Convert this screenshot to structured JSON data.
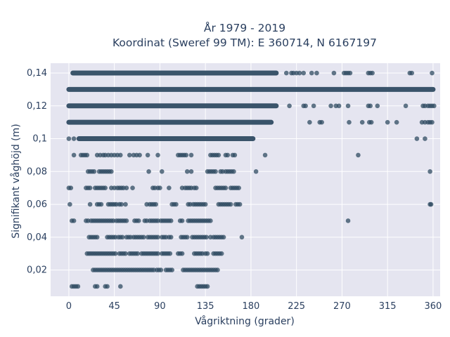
{
  "chart_data": {
    "type": "scatter",
    "title_line1": "År 1979 - 2019",
    "title_line2": "Koordinat (Sweref 99 TM): E 360714, N 6167197",
    "xlabel": "Vågriktning (grader)",
    "ylabel": "Signifikant våghöjd (m)",
    "xlim": [
      -18,
      367
    ],
    "ylim": [
      0.004,
      0.146
    ],
    "x_ticks": [
      0,
      45,
      90,
      135,
      180,
      225,
      270,
      315,
      360
    ],
    "x_tick_labels": [
      "0",
      "45",
      "90",
      "135",
      "180",
      "225",
      "270",
      "315",
      "360"
    ],
    "y_ticks": [
      0.02,
      0.04,
      0.06,
      0.08,
      0.1,
      0.12,
      0.14
    ],
    "y_tick_labels": [
      "0,02",
      "0,04",
      "0,06",
      "0,08",
      "0,1",
      "0,12",
      "0,14"
    ],
    "grid": true,
    "legend": "none",
    "colors": {
      "marker": "#2f4b62",
      "plot_bg": "#e5e5f0",
      "grid": "#ffffff"
    },
    "dense_rows": [
      {
        "y": 0.14,
        "x_start": 4,
        "x_end": 205
      },
      {
        "y": 0.13,
        "x_start": 0,
        "x_end": 360
      },
      {
        "y": 0.12,
        "x_start": 0,
        "x_end": 205
      },
      {
        "y": 0.11,
        "x_start": 0,
        "x_end": 200
      },
      {
        "y": 0.1,
        "x_start": 10,
        "x_end": 182
      }
    ],
    "points": [
      [
        215,
        0.14
      ],
      [
        220,
        0.14
      ],
      [
        222,
        0.14
      ],
      [
        225,
        0.14
      ],
      [
        228,
        0.14
      ],
      [
        232,
        0.14
      ],
      [
        240,
        0.14
      ],
      [
        245,
        0.14
      ],
      [
        262,
        0.14
      ],
      [
        272,
        0.14
      ],
      [
        274,
        0.14
      ],
      [
        276,
        0.14
      ],
      [
        278,
        0.14
      ],
      [
        296,
        0.14
      ],
      [
        298,
        0.14
      ],
      [
        300,
        0.14
      ],
      [
        337,
        0.14
      ],
      [
        339,
        0.14
      ],
      [
        359,
        0.14
      ],
      [
        218,
        0.12
      ],
      [
        232,
        0.12
      ],
      [
        234,
        0.12
      ],
      [
        242,
        0.12
      ],
      [
        259,
        0.12
      ],
      [
        264,
        0.12
      ],
      [
        267,
        0.12
      ],
      [
        276,
        0.12
      ],
      [
        296,
        0.12
      ],
      [
        298,
        0.12
      ],
      [
        305,
        0.12
      ],
      [
        333,
        0.12
      ],
      [
        350,
        0.12
      ],
      [
        352,
        0.12
      ],
      [
        355,
        0.12
      ],
      [
        357,
        0.12
      ],
      [
        359,
        0.12
      ],
      [
        361,
        0.12
      ],
      [
        238,
        0.11
      ],
      [
        248,
        0.11
      ],
      [
        250,
        0.11
      ],
      [
        277,
        0.11
      ],
      [
        290,
        0.11
      ],
      [
        297,
        0.11
      ],
      [
        299,
        0.11
      ],
      [
        315,
        0.11
      ],
      [
        324,
        0.11
      ],
      [
        349,
        0.11
      ],
      [
        352,
        0.11
      ],
      [
        355,
        0.11
      ],
      [
        357,
        0.11
      ],
      [
        359,
        0.11
      ],
      [
        0,
        0.1
      ],
      [
        5,
        0.1
      ],
      [
        344,
        0.1
      ],
      [
        352,
        0.1
      ],
      [
        5,
        0.09
      ],
      [
        12,
        0.09
      ],
      [
        14,
        0.09
      ],
      [
        16,
        0.09
      ],
      [
        18,
        0.09
      ],
      [
        28,
        0.09
      ],
      [
        31,
        0.09
      ],
      [
        34,
        0.09
      ],
      [
        36,
        0.09
      ],
      [
        39,
        0.09
      ],
      [
        42,
        0.09
      ],
      [
        45,
        0.09
      ],
      [
        48,
        0.09
      ],
      [
        51,
        0.09
      ],
      [
        60,
        0.09
      ],
      [
        64,
        0.09
      ],
      [
        67,
        0.09
      ],
      [
        70,
        0.09
      ],
      [
        78,
        0.09
      ],
      [
        88,
        0.09
      ],
      [
        108,
        0.09
      ],
      [
        110,
        0.09
      ],
      [
        112,
        0.09
      ],
      [
        114,
        0.09
      ],
      [
        116,
        0.09
      ],
      [
        121,
        0.09
      ],
      [
        140,
        0.09
      ],
      [
        142,
        0.09
      ],
      [
        144,
        0.09
      ],
      [
        146,
        0.09
      ],
      [
        148,
        0.09
      ],
      [
        155,
        0.09
      ],
      [
        157,
        0.09
      ],
      [
        162,
        0.09
      ],
      [
        164,
        0.09
      ],
      [
        194,
        0.09
      ],
      [
        286,
        0.09
      ],
      [
        19,
        0.08
      ],
      [
        21,
        0.08
      ],
      [
        23,
        0.08
      ],
      [
        25,
        0.08
      ],
      [
        30,
        0.08
      ],
      [
        32,
        0.08
      ],
      [
        34,
        0.08
      ],
      [
        36,
        0.08
      ],
      [
        38,
        0.08
      ],
      [
        40,
        0.08
      ],
      [
        42,
        0.08
      ],
      [
        79,
        0.08
      ],
      [
        92,
        0.08
      ],
      [
        117,
        0.08
      ],
      [
        121,
        0.08
      ],
      [
        137,
        0.08
      ],
      [
        139,
        0.08
      ],
      [
        141,
        0.08
      ],
      [
        143,
        0.08
      ],
      [
        145,
        0.08
      ],
      [
        150,
        0.08
      ],
      [
        152,
        0.08
      ],
      [
        155,
        0.08
      ],
      [
        157,
        0.08
      ],
      [
        159,
        0.08
      ],
      [
        161,
        0.08
      ],
      [
        163,
        0.08
      ],
      [
        185,
        0.08
      ],
      [
        357,
        0.08
      ],
      [
        0,
        0.07
      ],
      [
        2,
        0.07
      ],
      [
        17,
        0.07
      ],
      [
        19,
        0.07
      ],
      [
        21,
        0.07
      ],
      [
        26,
        0.07
      ],
      [
        28,
        0.07
      ],
      [
        30,
        0.07
      ],
      [
        32,
        0.07
      ],
      [
        34,
        0.07
      ],
      [
        36,
        0.07
      ],
      [
        42,
        0.07
      ],
      [
        45,
        0.07
      ],
      [
        48,
        0.07
      ],
      [
        50,
        0.07
      ],
      [
        52,
        0.07
      ],
      [
        54,
        0.07
      ],
      [
        57,
        0.07
      ],
      [
        63,
        0.07
      ],
      [
        83,
        0.07
      ],
      [
        85,
        0.07
      ],
      [
        88,
        0.07
      ],
      [
        90,
        0.07
      ],
      [
        99,
        0.07
      ],
      [
        112,
        0.07
      ],
      [
        115,
        0.07
      ],
      [
        117,
        0.07
      ],
      [
        119,
        0.07
      ],
      [
        121,
        0.07
      ],
      [
        124,
        0.07
      ],
      [
        126,
        0.07
      ],
      [
        145,
        0.07
      ],
      [
        147,
        0.07
      ],
      [
        149,
        0.07
      ],
      [
        151,
        0.07
      ],
      [
        153,
        0.07
      ],
      [
        155,
        0.07
      ],
      [
        160,
        0.07
      ],
      [
        162,
        0.07
      ],
      [
        164,
        0.07
      ],
      [
        166,
        0.07
      ],
      [
        168,
        0.07
      ],
      [
        1,
        0.06
      ],
      [
        21,
        0.06
      ],
      [
        28,
        0.06
      ],
      [
        30,
        0.06
      ],
      [
        32,
        0.06
      ],
      [
        39,
        0.06
      ],
      [
        41,
        0.06
      ],
      [
        43,
        0.06
      ],
      [
        45,
        0.06
      ],
      [
        47,
        0.06
      ],
      [
        50,
        0.06
      ],
      [
        52,
        0.06
      ],
      [
        56,
        0.06
      ],
      [
        77,
        0.06
      ],
      [
        80,
        0.06
      ],
      [
        82,
        0.06
      ],
      [
        84,
        0.06
      ],
      [
        86,
        0.06
      ],
      [
        102,
        0.06
      ],
      [
        104,
        0.06
      ],
      [
        106,
        0.06
      ],
      [
        118,
        0.06
      ],
      [
        120,
        0.06
      ],
      [
        123,
        0.06
      ],
      [
        125,
        0.06
      ],
      [
        127,
        0.06
      ],
      [
        129,
        0.06
      ],
      [
        131,
        0.06
      ],
      [
        133,
        0.06
      ],
      [
        135,
        0.06
      ],
      [
        148,
        0.06
      ],
      [
        150,
        0.06
      ],
      [
        152,
        0.06
      ],
      [
        154,
        0.06
      ],
      [
        156,
        0.06
      ],
      [
        158,
        0.06
      ],
      [
        160,
        0.06
      ],
      [
        165,
        0.06
      ],
      [
        167,
        0.06
      ],
      [
        169,
        0.06
      ],
      [
        357,
        0.06
      ],
      [
        358,
        0.06
      ],
      [
        3,
        0.05
      ],
      [
        5,
        0.05
      ],
      [
        17,
        0.05
      ],
      [
        19,
        0.05
      ],
      [
        22,
        0.05
      ],
      [
        24,
        0.05
      ],
      [
        26,
        0.05
      ],
      [
        28,
        0.05
      ],
      [
        30,
        0.05
      ],
      [
        32,
        0.05
      ],
      [
        34,
        0.05
      ],
      [
        36,
        0.05
      ],
      [
        38,
        0.05
      ],
      [
        40,
        0.05
      ],
      [
        42,
        0.05
      ],
      [
        44,
        0.05
      ],
      [
        47,
        0.05
      ],
      [
        49,
        0.05
      ],
      [
        51,
        0.05
      ],
      [
        53,
        0.05
      ],
      [
        55,
        0.05
      ],
      [
        57,
        0.05
      ],
      [
        65,
        0.05
      ],
      [
        67,
        0.05
      ],
      [
        69,
        0.05
      ],
      [
        75,
        0.05
      ],
      [
        77,
        0.05
      ],
      [
        80,
        0.05
      ],
      [
        82,
        0.05
      ],
      [
        84,
        0.05
      ],
      [
        86,
        0.05
      ],
      [
        88,
        0.05
      ],
      [
        91,
        0.05
      ],
      [
        93,
        0.05
      ],
      [
        95,
        0.05
      ],
      [
        97,
        0.05
      ],
      [
        99,
        0.05
      ],
      [
        101,
        0.05
      ],
      [
        110,
        0.05
      ],
      [
        112,
        0.05
      ],
      [
        118,
        0.05
      ],
      [
        120,
        0.05
      ],
      [
        122,
        0.05
      ],
      [
        124,
        0.05
      ],
      [
        126,
        0.05
      ],
      [
        128,
        0.05
      ],
      [
        130,
        0.05
      ],
      [
        132,
        0.05
      ],
      [
        134,
        0.05
      ],
      [
        136,
        0.05
      ],
      [
        138,
        0.05
      ],
      [
        140,
        0.05
      ],
      [
        276,
        0.05
      ],
      [
        20,
        0.04
      ],
      [
        22,
        0.04
      ],
      [
        24,
        0.04
      ],
      [
        26,
        0.04
      ],
      [
        28,
        0.04
      ],
      [
        38,
        0.04
      ],
      [
        40,
        0.04
      ],
      [
        42,
        0.04
      ],
      [
        44,
        0.04
      ],
      [
        46,
        0.04
      ],
      [
        49,
        0.04
      ],
      [
        51,
        0.04
      ],
      [
        53,
        0.04
      ],
      [
        57,
        0.04
      ],
      [
        59,
        0.04
      ],
      [
        61,
        0.04
      ],
      [
        64,
        0.04
      ],
      [
        66,
        0.04
      ],
      [
        68,
        0.04
      ],
      [
        70,
        0.04
      ],
      [
        72,
        0.04
      ],
      [
        74,
        0.04
      ],
      [
        78,
        0.04
      ],
      [
        80,
        0.04
      ],
      [
        82,
        0.04
      ],
      [
        84,
        0.04
      ],
      [
        86,
        0.04
      ],
      [
        88,
        0.04
      ],
      [
        92,
        0.04
      ],
      [
        94,
        0.04
      ],
      [
        96,
        0.04
      ],
      [
        99,
        0.04
      ],
      [
        101,
        0.04
      ],
      [
        111,
        0.04
      ],
      [
        113,
        0.04
      ],
      [
        115,
        0.04
      ],
      [
        117,
        0.04
      ],
      [
        122,
        0.04
      ],
      [
        124,
        0.04
      ],
      [
        126,
        0.04
      ],
      [
        128,
        0.04
      ],
      [
        130,
        0.04
      ],
      [
        132,
        0.04
      ],
      [
        134,
        0.04
      ],
      [
        136,
        0.04
      ],
      [
        140,
        0.04
      ],
      [
        143,
        0.04
      ],
      [
        145,
        0.04
      ],
      [
        147,
        0.04
      ],
      [
        149,
        0.04
      ],
      [
        151,
        0.04
      ],
      [
        153,
        0.04
      ],
      [
        171,
        0.04
      ],
      [
        18,
        0.03
      ],
      [
        20,
        0.03
      ],
      [
        22,
        0.03
      ],
      [
        24,
        0.03
      ],
      [
        26,
        0.03
      ],
      [
        28,
        0.03
      ],
      [
        30,
        0.03
      ],
      [
        32,
        0.03
      ],
      [
        34,
        0.03
      ],
      [
        36,
        0.03
      ],
      [
        38,
        0.03
      ],
      [
        40,
        0.03
      ],
      [
        42,
        0.03
      ],
      [
        44,
        0.03
      ],
      [
        46,
        0.03
      ],
      [
        50,
        0.03
      ],
      [
        52,
        0.03
      ],
      [
        54,
        0.03
      ],
      [
        56,
        0.03
      ],
      [
        60,
        0.03
      ],
      [
        62,
        0.03
      ],
      [
        64,
        0.03
      ],
      [
        66,
        0.03
      ],
      [
        68,
        0.03
      ],
      [
        72,
        0.03
      ],
      [
        74,
        0.03
      ],
      [
        76,
        0.03
      ],
      [
        78,
        0.03
      ],
      [
        80,
        0.03
      ],
      [
        82,
        0.03
      ],
      [
        84,
        0.03
      ],
      [
        86,
        0.03
      ],
      [
        88,
        0.03
      ],
      [
        92,
        0.03
      ],
      [
        94,
        0.03
      ],
      [
        96,
        0.03
      ],
      [
        98,
        0.03
      ],
      [
        100,
        0.03
      ],
      [
        108,
        0.03
      ],
      [
        110,
        0.03
      ],
      [
        112,
        0.03
      ],
      [
        124,
        0.03
      ],
      [
        126,
        0.03
      ],
      [
        128,
        0.03
      ],
      [
        130,
        0.03
      ],
      [
        132,
        0.03
      ],
      [
        135,
        0.03
      ],
      [
        137,
        0.03
      ],
      [
        143,
        0.03
      ],
      [
        145,
        0.03
      ],
      [
        147,
        0.03
      ],
      [
        149,
        0.03
      ],
      [
        151,
        0.03
      ],
      [
        24,
        0.02
      ],
      [
        26,
        0.02
      ],
      [
        28,
        0.02
      ],
      [
        30,
        0.02
      ],
      [
        32,
        0.02
      ],
      [
        34,
        0.02
      ],
      [
        36,
        0.02
      ],
      [
        38,
        0.02
      ],
      [
        40,
        0.02
      ],
      [
        42,
        0.02
      ],
      [
        44,
        0.02
      ],
      [
        46,
        0.02
      ],
      [
        48,
        0.02
      ],
      [
        50,
        0.02
      ],
      [
        52,
        0.02
      ],
      [
        54,
        0.02
      ],
      [
        56,
        0.02
      ],
      [
        58,
        0.02
      ],
      [
        60,
        0.02
      ],
      [
        62,
        0.02
      ],
      [
        64,
        0.02
      ],
      [
        66,
        0.02
      ],
      [
        68,
        0.02
      ],
      [
        70,
        0.02
      ],
      [
        72,
        0.02
      ],
      [
        74,
        0.02
      ],
      [
        76,
        0.02
      ],
      [
        78,
        0.02
      ],
      [
        80,
        0.02
      ],
      [
        82,
        0.02
      ],
      [
        84,
        0.02
      ],
      [
        87,
        0.02
      ],
      [
        89,
        0.02
      ],
      [
        91,
        0.02
      ],
      [
        96,
        0.02
      ],
      [
        98,
        0.02
      ],
      [
        100,
        0.02
      ],
      [
        102,
        0.02
      ],
      [
        113,
        0.02
      ],
      [
        115,
        0.02
      ],
      [
        117,
        0.02
      ],
      [
        119,
        0.02
      ],
      [
        121,
        0.02
      ],
      [
        123,
        0.02
      ],
      [
        125,
        0.02
      ],
      [
        127,
        0.02
      ],
      [
        129,
        0.02
      ],
      [
        131,
        0.02
      ],
      [
        133,
        0.02
      ],
      [
        135,
        0.02
      ],
      [
        137,
        0.02
      ],
      [
        139,
        0.02
      ],
      [
        141,
        0.02
      ],
      [
        143,
        0.02
      ],
      [
        145,
        0.02
      ],
      [
        147,
        0.02
      ],
      [
        3,
        0.01
      ],
      [
        5,
        0.01
      ],
      [
        7,
        0.01
      ],
      [
        9,
        0.01
      ],
      [
        26,
        0.01
      ],
      [
        28,
        0.01
      ],
      [
        36,
        0.01
      ],
      [
        38,
        0.01
      ],
      [
        51,
        0.01
      ],
      [
        127,
        0.01
      ],
      [
        129,
        0.01
      ],
      [
        131,
        0.01
      ],
      [
        133,
        0.01
      ],
      [
        135,
        0.01
      ],
      [
        137,
        0.01
      ]
    ]
  }
}
